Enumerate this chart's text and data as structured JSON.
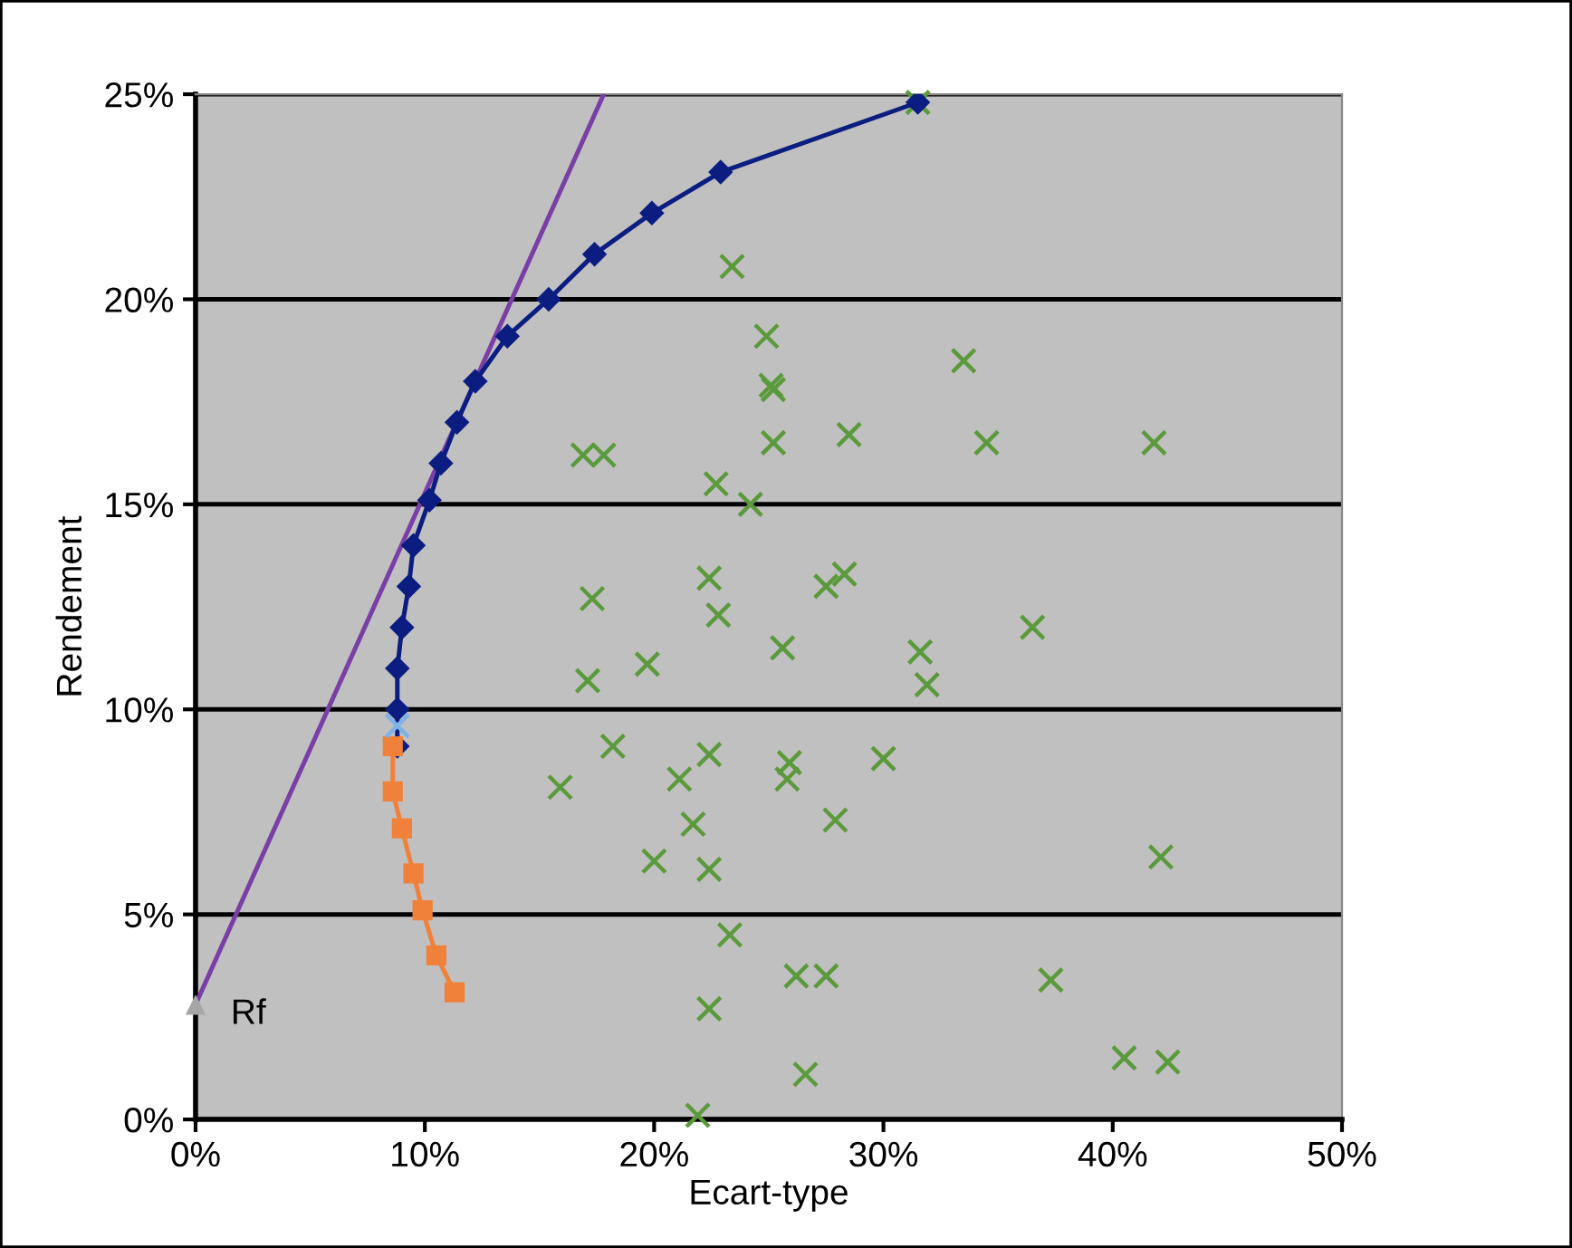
{
  "chart_data": {
    "type": "scatter",
    "xlabel": "Ecart-type",
    "ylabel": "Rendement",
    "xlim": [
      0,
      50
    ],
    "ylim": [
      0,
      25
    ],
    "xticks": [
      {
        "value": 0,
        "label": "0%"
      },
      {
        "value": 10,
        "label": "10%"
      },
      {
        "value": 20,
        "label": "20%"
      },
      {
        "value": 30,
        "label": "30%"
      },
      {
        "value": 40,
        "label": "40%"
      },
      {
        "value": 50,
        "label": "50%"
      }
    ],
    "yticks": [
      {
        "value": 0,
        "label": "0%"
      },
      {
        "value": 5,
        "label": "5%"
      },
      {
        "value": 10,
        "label": "10%"
      },
      {
        "value": 15,
        "label": "15%"
      },
      {
        "value": 20,
        "label": "20%"
      },
      {
        "value": 25,
        "label": "25%"
      }
    ],
    "grid": "y",
    "series": [
      {
        "marker": "cross",
        "color": "#5b9a3c",
        "x": [
          23.4,
          24.9,
          25.1,
          25.2,
          33.5,
          25.2,
          28.5,
          34.5,
          41.8,
          16.9,
          17.8,
          22.7,
          24.2,
          17.3,
          22.4,
          22.8,
          27.5,
          28.3,
          25.6,
          31.6,
          31.9,
          36.5,
          17.1,
          19.7,
          15.9,
          18.2,
          22.4,
          21.1,
          25.9,
          25.8,
          30.0,
          21.7,
          27.9,
          20.0,
          22.4,
          42.1,
          23.3,
          26.2,
          27.5,
          22.4,
          37.3,
          26.6,
          40.5,
          42.4,
          21.9,
          31.5
        ],
        "values": [
          20.8,
          19.1,
          17.9,
          17.8,
          18.5,
          16.5,
          16.7,
          16.5,
          16.5,
          16.2,
          16.2,
          15.5,
          15.0,
          12.7,
          13.2,
          12.3,
          13.0,
          13.3,
          11.5,
          11.4,
          10.6,
          12.0,
          10.7,
          11.1,
          8.1,
          9.1,
          8.9,
          8.3,
          8.7,
          8.3,
          8.8,
          7.2,
          7.3,
          6.3,
          6.1,
          6.4,
          4.5,
          3.5,
          3.5,
          2.7,
          3.4,
          1.1,
          1.5,
          1.4,
          0.1,
          24.8
        ]
      },
      {
        "type": "line",
        "marker": "none",
        "color": "#7a3fa6",
        "x": [
          0,
          17.8
        ],
        "values": [
          2.8,
          25
        ]
      },
      {
        "type": "line",
        "marker": "diamond",
        "color": "#0b1d80",
        "x": [
          8.8,
          8.8,
          8.8,
          9.0,
          9.3,
          9.5,
          10.2,
          10.7,
          11.4,
          12.2,
          13.6,
          15.4,
          17.4,
          19.9,
          22.9,
          31.5
        ],
        "values": [
          9.1,
          10.0,
          11.0,
          12.0,
          13.0,
          14.0,
          15.1,
          16.0,
          17.0,
          18.0,
          19.1,
          20.0,
          21.1,
          22.1,
          23.1,
          24.8
        ]
      },
      {
        "type": "line",
        "marker": "square",
        "color": "#f0813a",
        "x": [
          8.6,
          8.6,
          9.0,
          9.5,
          9.9,
          10.5,
          11.3
        ],
        "values": [
          9.1,
          8.0,
          7.1,
          6.0,
          5.1,
          4.0,
          3.1
        ]
      },
      {
        "marker": "cross",
        "color": "#7fb2e6",
        "x": [
          8.8
        ],
        "values": [
          9.6
        ]
      },
      {
        "marker": "triangle",
        "color": "#a6a6a6",
        "x": [
          0
        ],
        "values": [
          2.8
        ]
      }
    ],
    "annotations": [
      {
        "text": "Rf",
        "x": 0,
        "y": 2.8
      }
    ]
  }
}
